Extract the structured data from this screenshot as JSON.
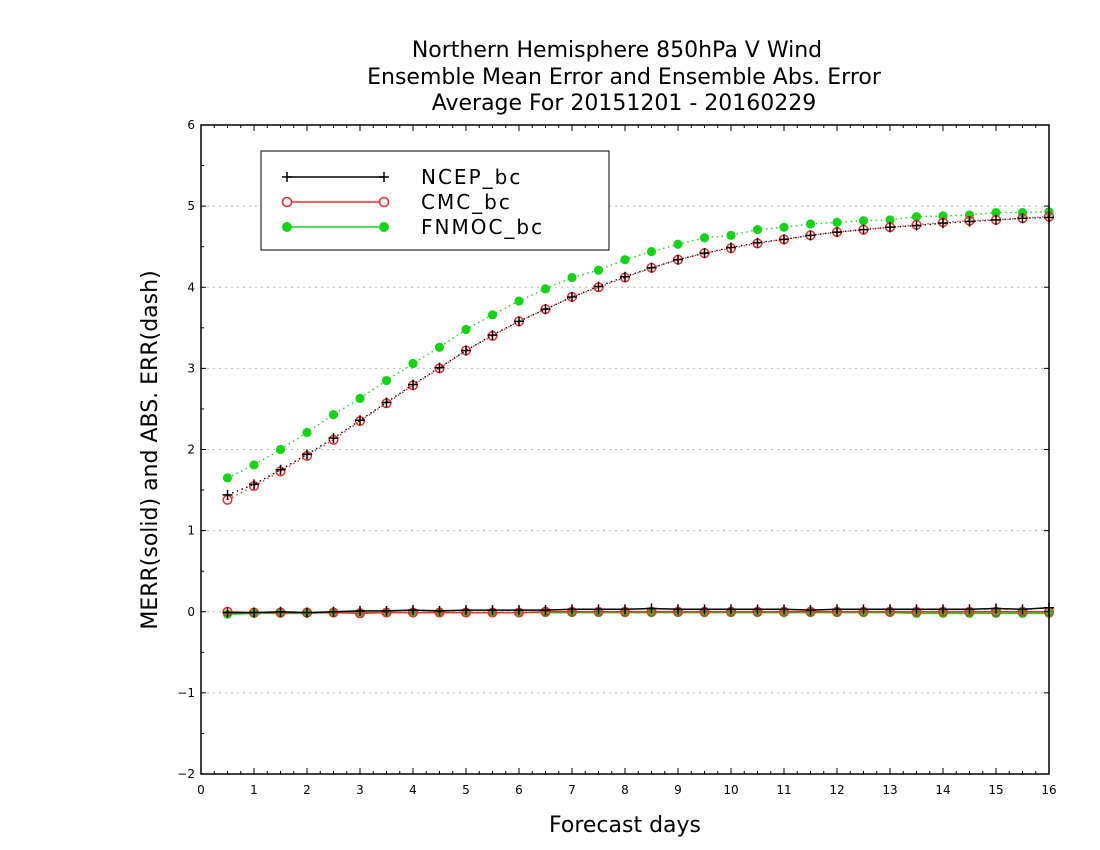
{
  "chart_data": {
    "type": "line",
    "title": [
      "Northern Hemisphere 850hPa V Wind",
      "Ensemble Mean Error and Ensemble Abs. Error",
      "Average For 20151201 - 20160229"
    ],
    "xlabel": "Forecast days",
    "ylabel": "MERR(solid) and ABS. ERR(dash)",
    "xlim": [
      0,
      16
    ],
    "ylim": [
      -2,
      6
    ],
    "xticks": [
      0,
      1,
      2,
      3,
      4,
      5,
      6,
      7,
      8,
      9,
      10,
      11,
      12,
      13,
      14,
      15,
      16
    ],
    "yticks": [
      -2,
      -1,
      0,
      1,
      2,
      3,
      4,
      5,
      6
    ],
    "grid": "horizontal dotted",
    "legend_position": "top-left",
    "x": [
      0.5,
      1,
      1.5,
      2,
      2.5,
      3,
      3.5,
      4,
      4.5,
      5,
      5.5,
      6,
      6.5,
      7,
      7.5,
      8,
      8.5,
      9,
      9.5,
      10,
      10.5,
      11,
      11.5,
      12,
      12.5,
      13,
      13.5,
      14,
      14.5,
      15,
      15.5,
      16
    ],
    "series": [
      {
        "name": "NCEP_bc",
        "color": "#000000",
        "marker": "plus",
        "merr": [
          -0.01,
          -0.01,
          0.0,
          -0.01,
          0.0,
          0.01,
          0.01,
          0.02,
          0.01,
          0.02,
          0.02,
          0.02,
          0.02,
          0.03,
          0.03,
          0.03,
          0.04,
          0.03,
          0.03,
          0.03,
          0.03,
          0.03,
          0.02,
          0.03,
          0.03,
          0.03,
          0.03,
          0.03,
          0.03,
          0.04,
          0.03,
          0.05
        ],
        "abs_err": [
          1.44,
          1.57,
          1.75,
          1.94,
          2.14,
          2.36,
          2.58,
          2.8,
          3.01,
          3.22,
          3.41,
          3.58,
          3.73,
          3.88,
          4.01,
          4.13,
          4.24,
          4.34,
          4.42,
          4.49,
          4.55,
          4.59,
          4.64,
          4.68,
          4.71,
          4.74,
          4.76,
          4.79,
          4.81,
          4.83,
          4.85,
          4.86
        ]
      },
      {
        "name": "CMC_bc",
        "color": "#e8302f",
        "marker": "open-circle",
        "merr": [
          0.0,
          -0.01,
          -0.01,
          -0.01,
          -0.01,
          -0.02,
          -0.01,
          -0.01,
          -0.01,
          -0.01,
          -0.01,
          -0.01,
          0.0,
          0.0,
          0.0,
          0.0,
          0.0,
          0.0,
          0.0,
          0.0,
          0.0,
          0.0,
          0.0,
          0.0,
          0.0,
          0.0,
          0.0,
          0.0,
          0.0,
          0.0,
          0.0,
          0.0
        ],
        "abs_err": [
          1.38,
          1.55,
          1.73,
          1.92,
          2.12,
          2.35,
          2.57,
          2.79,
          3.0,
          3.22,
          3.4,
          3.58,
          3.73,
          3.88,
          4.0,
          4.12,
          4.24,
          4.34,
          4.42,
          4.48,
          4.54,
          4.59,
          4.64,
          4.68,
          4.71,
          4.74,
          4.77,
          4.8,
          4.82,
          4.83,
          4.85,
          4.87
        ]
      },
      {
        "name": "FNMOC_bc",
        "color": "#17d317",
        "marker": "filled-circle",
        "merr": [
          -0.03,
          -0.02,
          -0.02,
          -0.02,
          -0.01,
          -0.01,
          -0.01,
          -0.01,
          -0.01,
          -0.01,
          -0.01,
          -0.01,
          -0.01,
          -0.01,
          -0.01,
          -0.01,
          -0.01,
          -0.01,
          -0.01,
          -0.01,
          -0.01,
          -0.01,
          -0.01,
          -0.01,
          -0.01,
          -0.01,
          -0.02,
          -0.02,
          -0.02,
          -0.02,
          -0.02,
          -0.02
        ],
        "abs_err": [
          1.65,
          1.81,
          2.0,
          2.21,
          2.43,
          2.63,
          2.85,
          3.06,
          3.26,
          3.48,
          3.66,
          3.83,
          3.98,
          4.12,
          4.21,
          4.34,
          4.44,
          4.53,
          4.61,
          4.64,
          4.71,
          4.74,
          4.78,
          4.8,
          4.82,
          4.83,
          4.87,
          4.88,
          4.89,
          4.92,
          4.92,
          4.93
        ]
      }
    ]
  }
}
